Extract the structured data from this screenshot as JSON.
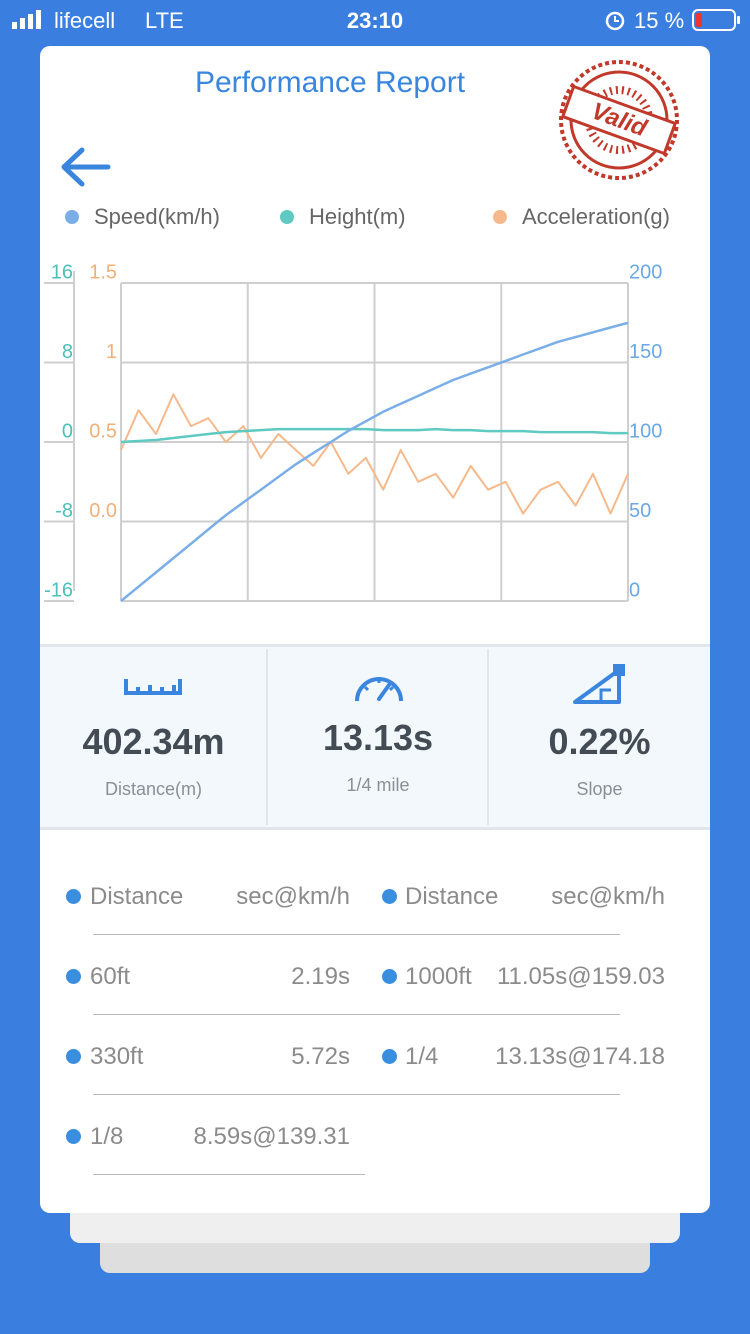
{
  "status_bar": {
    "carrier": "lifecell",
    "network": "LTE",
    "time": "23:10",
    "battery": "15 %"
  },
  "header": {
    "title": "Performance Report",
    "stamp": "Valid"
  },
  "chart_data": {
    "type": "line",
    "grid": true,
    "legend": "top",
    "ylim": [
      -16,
      16
    ],
    "yticks": [
      16,
      8,
      0,
      -8,
      -16
    ],
    "y2lim": [
      0,
      200
    ],
    "y2ticks": [
      200,
      150,
      100,
      50,
      0
    ],
    "y3lim": [
      -0.5,
      1.5
    ],
    "y3ticks": [
      1.5,
      1,
      0.5,
      {
        "value": 0,
        "label": "0.0"
      }
    ],
    "series": [
      {
        "name": "Speed(km/h)",
        "color": "#7aaee8",
        "axis": "y2",
        "values": [
          0,
          9,
          18,
          27,
          36,
          45,
          54,
          62,
          70,
          78,
          86,
          93,
          100,
          107,
          113,
          119,
          124,
          129,
          134,
          139,
          143,
          147,
          151,
          155,
          159,
          163,
          166,
          169,
          172,
          175
        ]
      },
      {
        "name": "Height(m)",
        "color": "#5ecac2",
        "axis": "y",
        "values": [
          0,
          0.1,
          0.2,
          0.4,
          0.6,
          0.8,
          1,
          1.1,
          1.2,
          1.3,
          1.3,
          1.3,
          1.3,
          1.3,
          1.3,
          1.2,
          1.2,
          1.2,
          1.3,
          1.2,
          1.2,
          1.1,
          1.1,
          1.1,
          1,
          1,
          1,
          1,
          0.9,
          0.9
        ]
      },
      {
        "name": "Acceleration(g)",
        "color": "#f5b98c",
        "axis": "y3",
        "values": [
          0.45,
          0.7,
          0.55,
          0.8,
          0.6,
          0.65,
          0.5,
          0.6,
          0.4,
          0.55,
          0.45,
          0.35,
          0.5,
          0.3,
          0.4,
          0.2,
          0.45,
          0.25,
          0.3,
          0.15,
          0.35,
          0.2,
          0.25,
          0.05,
          0.2,
          0.25,
          0.1,
          0.3,
          0.05,
          0.3
        ]
      }
    ]
  },
  "summary": [
    {
      "value": "402.34m",
      "label": "Distance(m)"
    },
    {
      "value": "13.13s",
      "label": "1/4 mile"
    },
    {
      "value": "0.22%",
      "label": "Slope"
    }
  ],
  "splits": {
    "header": [
      "Distance",
      "sec@km/h"
    ],
    "rows": [
      [
        "60ft",
        "2.19s"
      ],
      [
        "1000ft",
        "11.05s@159.03"
      ],
      [
        "330ft",
        "5.72s"
      ],
      [
        "1/4",
        "13.13s@174.18"
      ],
      [
        "1/8",
        "8.59s@139.31"
      ]
    ]
  }
}
